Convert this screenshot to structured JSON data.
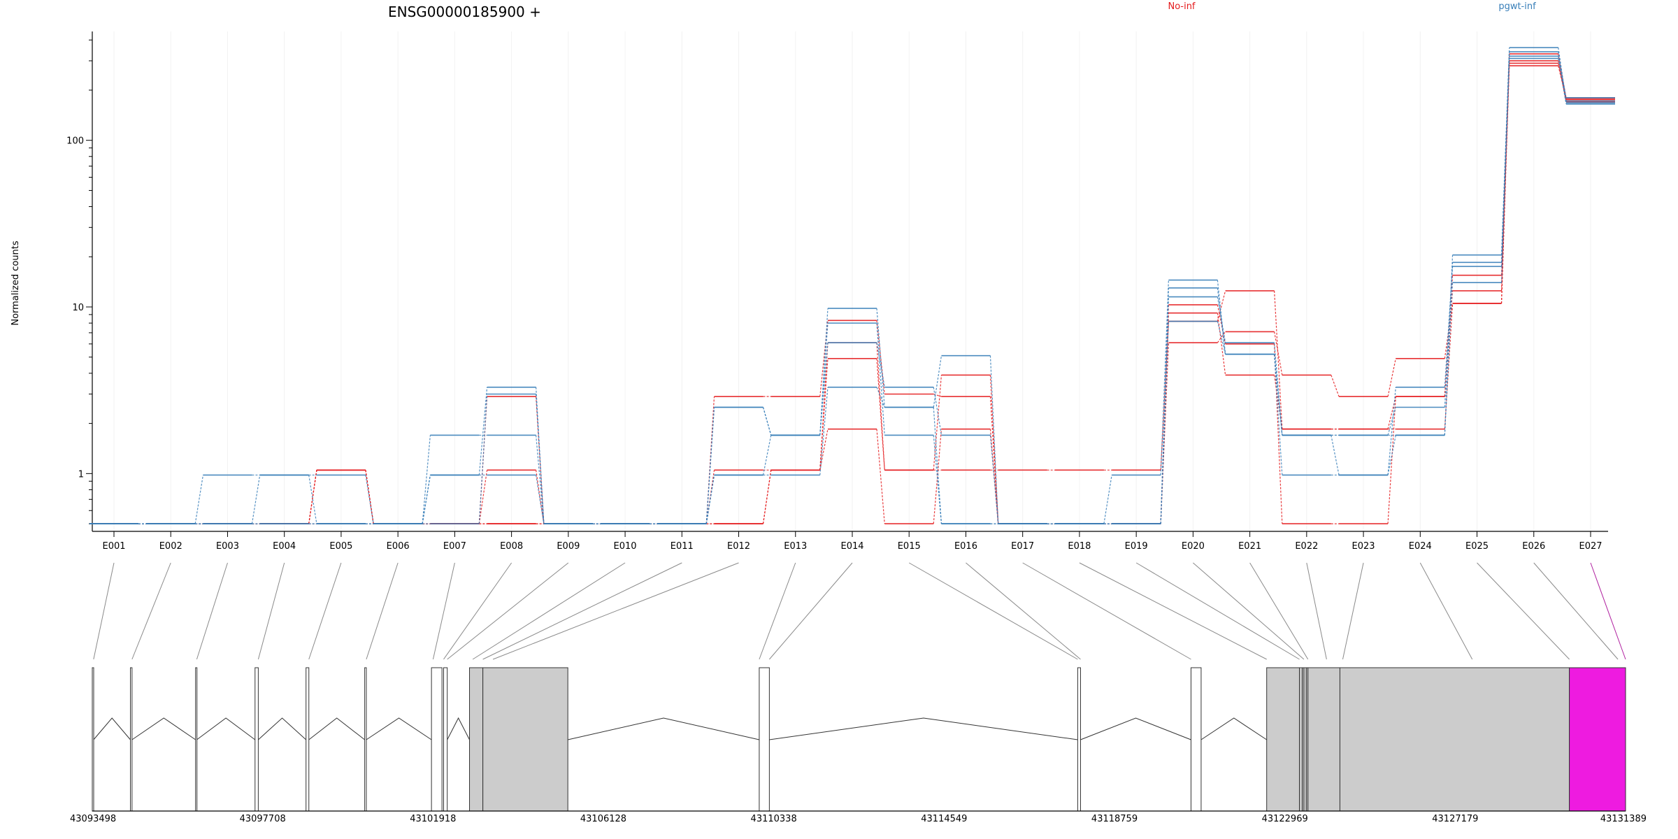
{
  "chart_data": {
    "type": "line",
    "title": "ENSG00000185900 +",
    "xlabel": "",
    "ylabel": "Normalized counts",
    "y_scale": "log",
    "ylim": [
      0.45,
      450
    ],
    "y_ticks": [
      1,
      10,
      100
    ],
    "grid": false,
    "legend": [
      {
        "name": "No-inf",
        "color": "#E41A1C",
        "placement": "top-center"
      },
      {
        "name": "pgwt-inf",
        "color": "#377EB8",
        "placement": "top-right"
      }
    ],
    "categories": [
      "E001",
      "E002",
      "E003",
      "E004",
      "E005",
      "E006",
      "E007",
      "E008",
      "E009",
      "E010",
      "E011",
      "E012",
      "E013",
      "E014",
      "E015",
      "E016",
      "E017",
      "E018",
      "E019",
      "E020",
      "E021",
      "E022",
      "E023",
      "E024",
      "E025",
      "E026",
      "E027"
    ],
    "series": [
      {
        "group": "No-inf",
        "color": "#E41A1C",
        "values": [
          0.5,
          0.5,
          0.5,
          0.5,
          1.05,
          0.5,
          0.5,
          1.05,
          0.5,
          0.5,
          0.5,
          1.05,
          1.05,
          6.1,
          1.05,
          1.05,
          1.05,
          1.05,
          1.05,
          8.2,
          12.5,
          1.85,
          1.85,
          1.85,
          10.5,
          330,
          180
        ]
      },
      {
        "group": "No-inf",
        "color": "#E41A1C",
        "values": [
          0.5,
          0.5,
          0.5,
          0.5,
          1.05,
          0.5,
          0.5,
          2.9,
          0.5,
          0.5,
          0.5,
          2.9,
          2.9,
          8.3,
          3.0,
          2.9,
          0.5,
          0.5,
          0.5,
          10.3,
          6.0,
          0.5,
          0.5,
          2.9,
          12.5,
          300,
          170
        ]
      },
      {
        "group": "No-inf",
        "color": "#E41A1C",
        "values": [
          0.5,
          0.5,
          0.5,
          0.5,
          1.05,
          0.5,
          0.5,
          0.5,
          0.5,
          0.5,
          0.5,
          0.5,
          1.05,
          4.9,
          1.05,
          3.9,
          0.5,
          0.5,
          0.5,
          6.1,
          7.1,
          3.9,
          2.9,
          4.9,
          10.5,
          290,
          175
        ]
      },
      {
        "group": "No-inf",
        "color": "#E41A1C",
        "values": [
          0.5,
          0.5,
          0.5,
          0.5,
          0.5,
          0.5,
          0.5,
          0.5,
          0.5,
          0.5,
          0.5,
          0.5,
          1.05,
          1.85,
          0.5,
          1.85,
          0.5,
          0.5,
          0.5,
          9.2,
          3.9,
          1.85,
          1.85,
          2.9,
          15.5,
          280,
          178
        ]
      },
      {
        "group": "pgwt-inf",
        "color": "#377EB8",
        "values": [
          0.5,
          0.5,
          0.98,
          0.98,
          0.5,
          0.5,
          0.98,
          3.3,
          0.5,
          0.5,
          0.5,
          0.98,
          1.7,
          9.8,
          2.5,
          5.1,
          0.5,
          0.5,
          0.98,
          14.5,
          5.2,
          0.98,
          0.98,
          1.7,
          20.5,
          360,
          172
        ]
      },
      {
        "group": "pgwt-inf",
        "color": "#377EB8",
        "values": [
          0.5,
          0.5,
          0.5,
          0.98,
          0.98,
          0.5,
          1.7,
          1.7,
          0.5,
          0.5,
          0.5,
          2.5,
          1.7,
          6.1,
          3.3,
          1.7,
          0.5,
          0.5,
          0.5,
          11.5,
          6.1,
          1.7,
          0.98,
          3.3,
          17.5,
          340,
          168
        ]
      },
      {
        "group": "pgwt-inf",
        "color": "#377EB8",
        "values": [
          0.5,
          0.5,
          0.5,
          0.5,
          0.5,
          0.5,
          0.98,
          0.98,
          0.5,
          0.5,
          0.5,
          2.5,
          1.7,
          8.0,
          1.7,
          0.5,
          0.5,
          0.5,
          0.5,
          8.2,
          5.2,
          1.7,
          1.7,
          2.5,
          18.5,
          320,
          180
        ]
      },
      {
        "group": "pgwt-inf",
        "color": "#377EB8",
        "values": [
          0.5,
          0.5,
          0.5,
          0.5,
          0.5,
          0.5,
          0.5,
          3.0,
          0.5,
          0.5,
          0.5,
          0.98,
          0.98,
          3.3,
          2.5,
          0.5,
          0.5,
          0.5,
          0.5,
          13.0,
          5.2,
          1.7,
          1.7,
          1.7,
          14.0,
          310,
          165
        ]
      }
    ],
    "gene_model": {
      "coord_labels": [
        "43093498",
        "43097708",
        "43101918",
        "43106128",
        "43110338",
        "43114549",
        "43118759",
        "43122969",
        "43127179",
        "43131389"
      ],
      "coord_range": [
        43093498,
        43131389
      ],
      "exon_color": "#CCCCCC",
      "highlight_color": "#EE1BE0",
      "exons": [
        {
          "start": 43093498,
          "end": 43093530,
          "fill": "none"
        },
        {
          "start": 43094440,
          "end": 43094480,
          "fill": "none"
        },
        {
          "start": 43096050,
          "end": 43096080,
          "fill": "none"
        },
        {
          "start": 43097520,
          "end": 43097600,
          "fill": "none"
        },
        {
          "start": 43098780,
          "end": 43098850,
          "fill": "none"
        },
        {
          "start": 43100230,
          "end": 43100270,
          "fill": "none"
        },
        {
          "start": 43101880,
          "end": 43102140,
          "fill": "none"
        },
        {
          "start": 43102180,
          "end": 43102270,
          "fill": "none"
        },
        {
          "start": 43102820,
          "end": 43103150,
          "fill": "grey"
        },
        {
          "start": 43103150,
          "end": 43105250,
          "fill": "grey"
        },
        {
          "start": 43109980,
          "end": 43110230,
          "fill": "none"
        },
        {
          "start": 43117850,
          "end": 43117920,
          "fill": "none"
        },
        {
          "start": 43120650,
          "end": 43120900,
          "fill": "none"
        },
        {
          "start": 43122520,
          "end": 43123330,
          "fill": "grey"
        },
        {
          "start": 43123330,
          "end": 43123400,
          "fill": "grey"
        },
        {
          "start": 43123400,
          "end": 43123440,
          "fill": "grey"
        },
        {
          "start": 43123440,
          "end": 43123500,
          "fill": "grey"
        },
        {
          "start": 43123500,
          "end": 43123540,
          "fill": "grey"
        },
        {
          "start": 43123540,
          "end": 43124330,
          "fill": "grey"
        },
        {
          "start": 43124330,
          "end": 43130000,
          "fill": "grey"
        },
        {
          "start": 43130000,
          "end": 43131389,
          "fill": "highlight"
        }
      ],
      "connectors": [
        43093530,
        43094480,
        43096080,
        43097600,
        43098850,
        43100270,
        43101920,
        43102180,
        43102270,
        43102900,
        43103150,
        43103400,
        43109980,
        43110230,
        43117850,
        43117920,
        43120650,
        43122520,
        43123330,
        43123440,
        43123540,
        43124000,
        43124400,
        43127600,
        43130000,
        43131200,
        43131389
      ]
    }
  }
}
